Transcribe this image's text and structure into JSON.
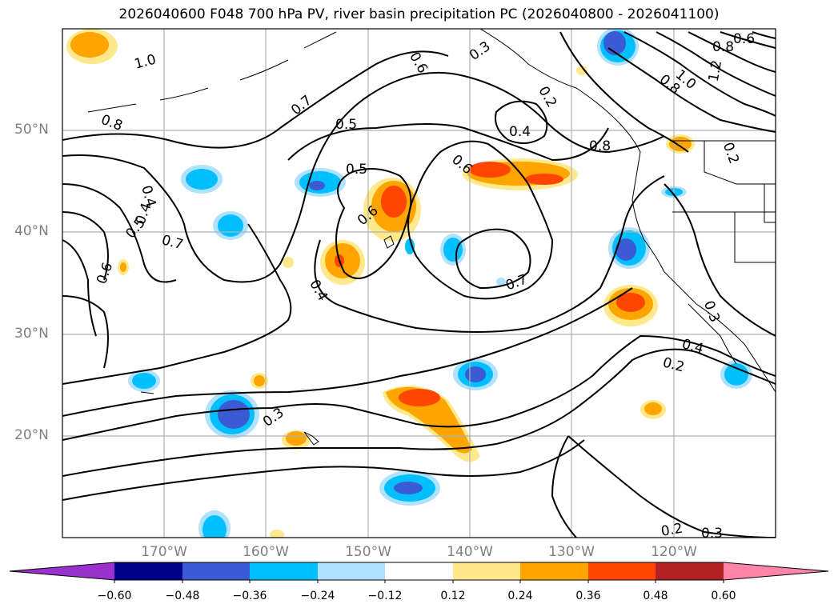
{
  "title": "2026040600 F048 700 hPa PV, river basin precipitation PC (2026040800 - 2026041100)",
  "map": {
    "lat_labels": [
      {
        "label": "50°N",
        "lat": 50
      },
      {
        "label": "40°N",
        "lat": 40
      },
      {
        "label": "30°N",
        "lat": 30
      },
      {
        "label": "20°N",
        "lat": 20
      }
    ],
    "lon_labels": [
      {
        "label": "170°W",
        "lon": -170
      },
      {
        "label": "160°W",
        "lon": -160
      },
      {
        "label": "150°W",
        "lon": -150
      },
      {
        "label": "140°W",
        "lon": -140
      },
      {
        "label": "130°W",
        "lon": -130
      },
      {
        "label": "120°W",
        "lon": -120
      }
    ],
    "lat_range": [
      10,
      60
    ],
    "lon_range": [
      -180,
      -110
    ]
  },
  "contour_labels": [
    "1.0",
    "0.8",
    "0.7",
    "0.6",
    "0.5",
    "0.4",
    "0.3",
    "0.2",
    "1.2",
    "0.6",
    "0.8",
    "0.8",
    "1.0",
    "0.5",
    "0.5",
    "0.6",
    "0.4",
    "0.7",
    "0.4",
    "0.7",
    "0.6",
    "0.6",
    "0.4",
    "0.2",
    "0.3",
    "0.2",
    "0.3",
    "0.4",
    "0.2",
    "0.3",
    "0.8"
  ],
  "colorbar": {
    "ticks": [
      "−0.60",
      "−0.48",
      "−0.36",
      "−0.24",
      "−0.12",
      "0.12",
      "0.24",
      "0.36",
      "0.48",
      "0.60"
    ],
    "colors": [
      "#9932cc",
      "#00008b",
      "#3a5bd4",
      "#00bfff",
      "#b0e2ff",
      "#ffffff",
      "#ffe98c",
      "#ffa500",
      "#ff4500",
      "#b22222",
      "#ff85a8"
    ]
  },
  "colors": {
    "grid": "#b0b0b0",
    "contour": "#000000",
    "coast": "#000000"
  }
}
